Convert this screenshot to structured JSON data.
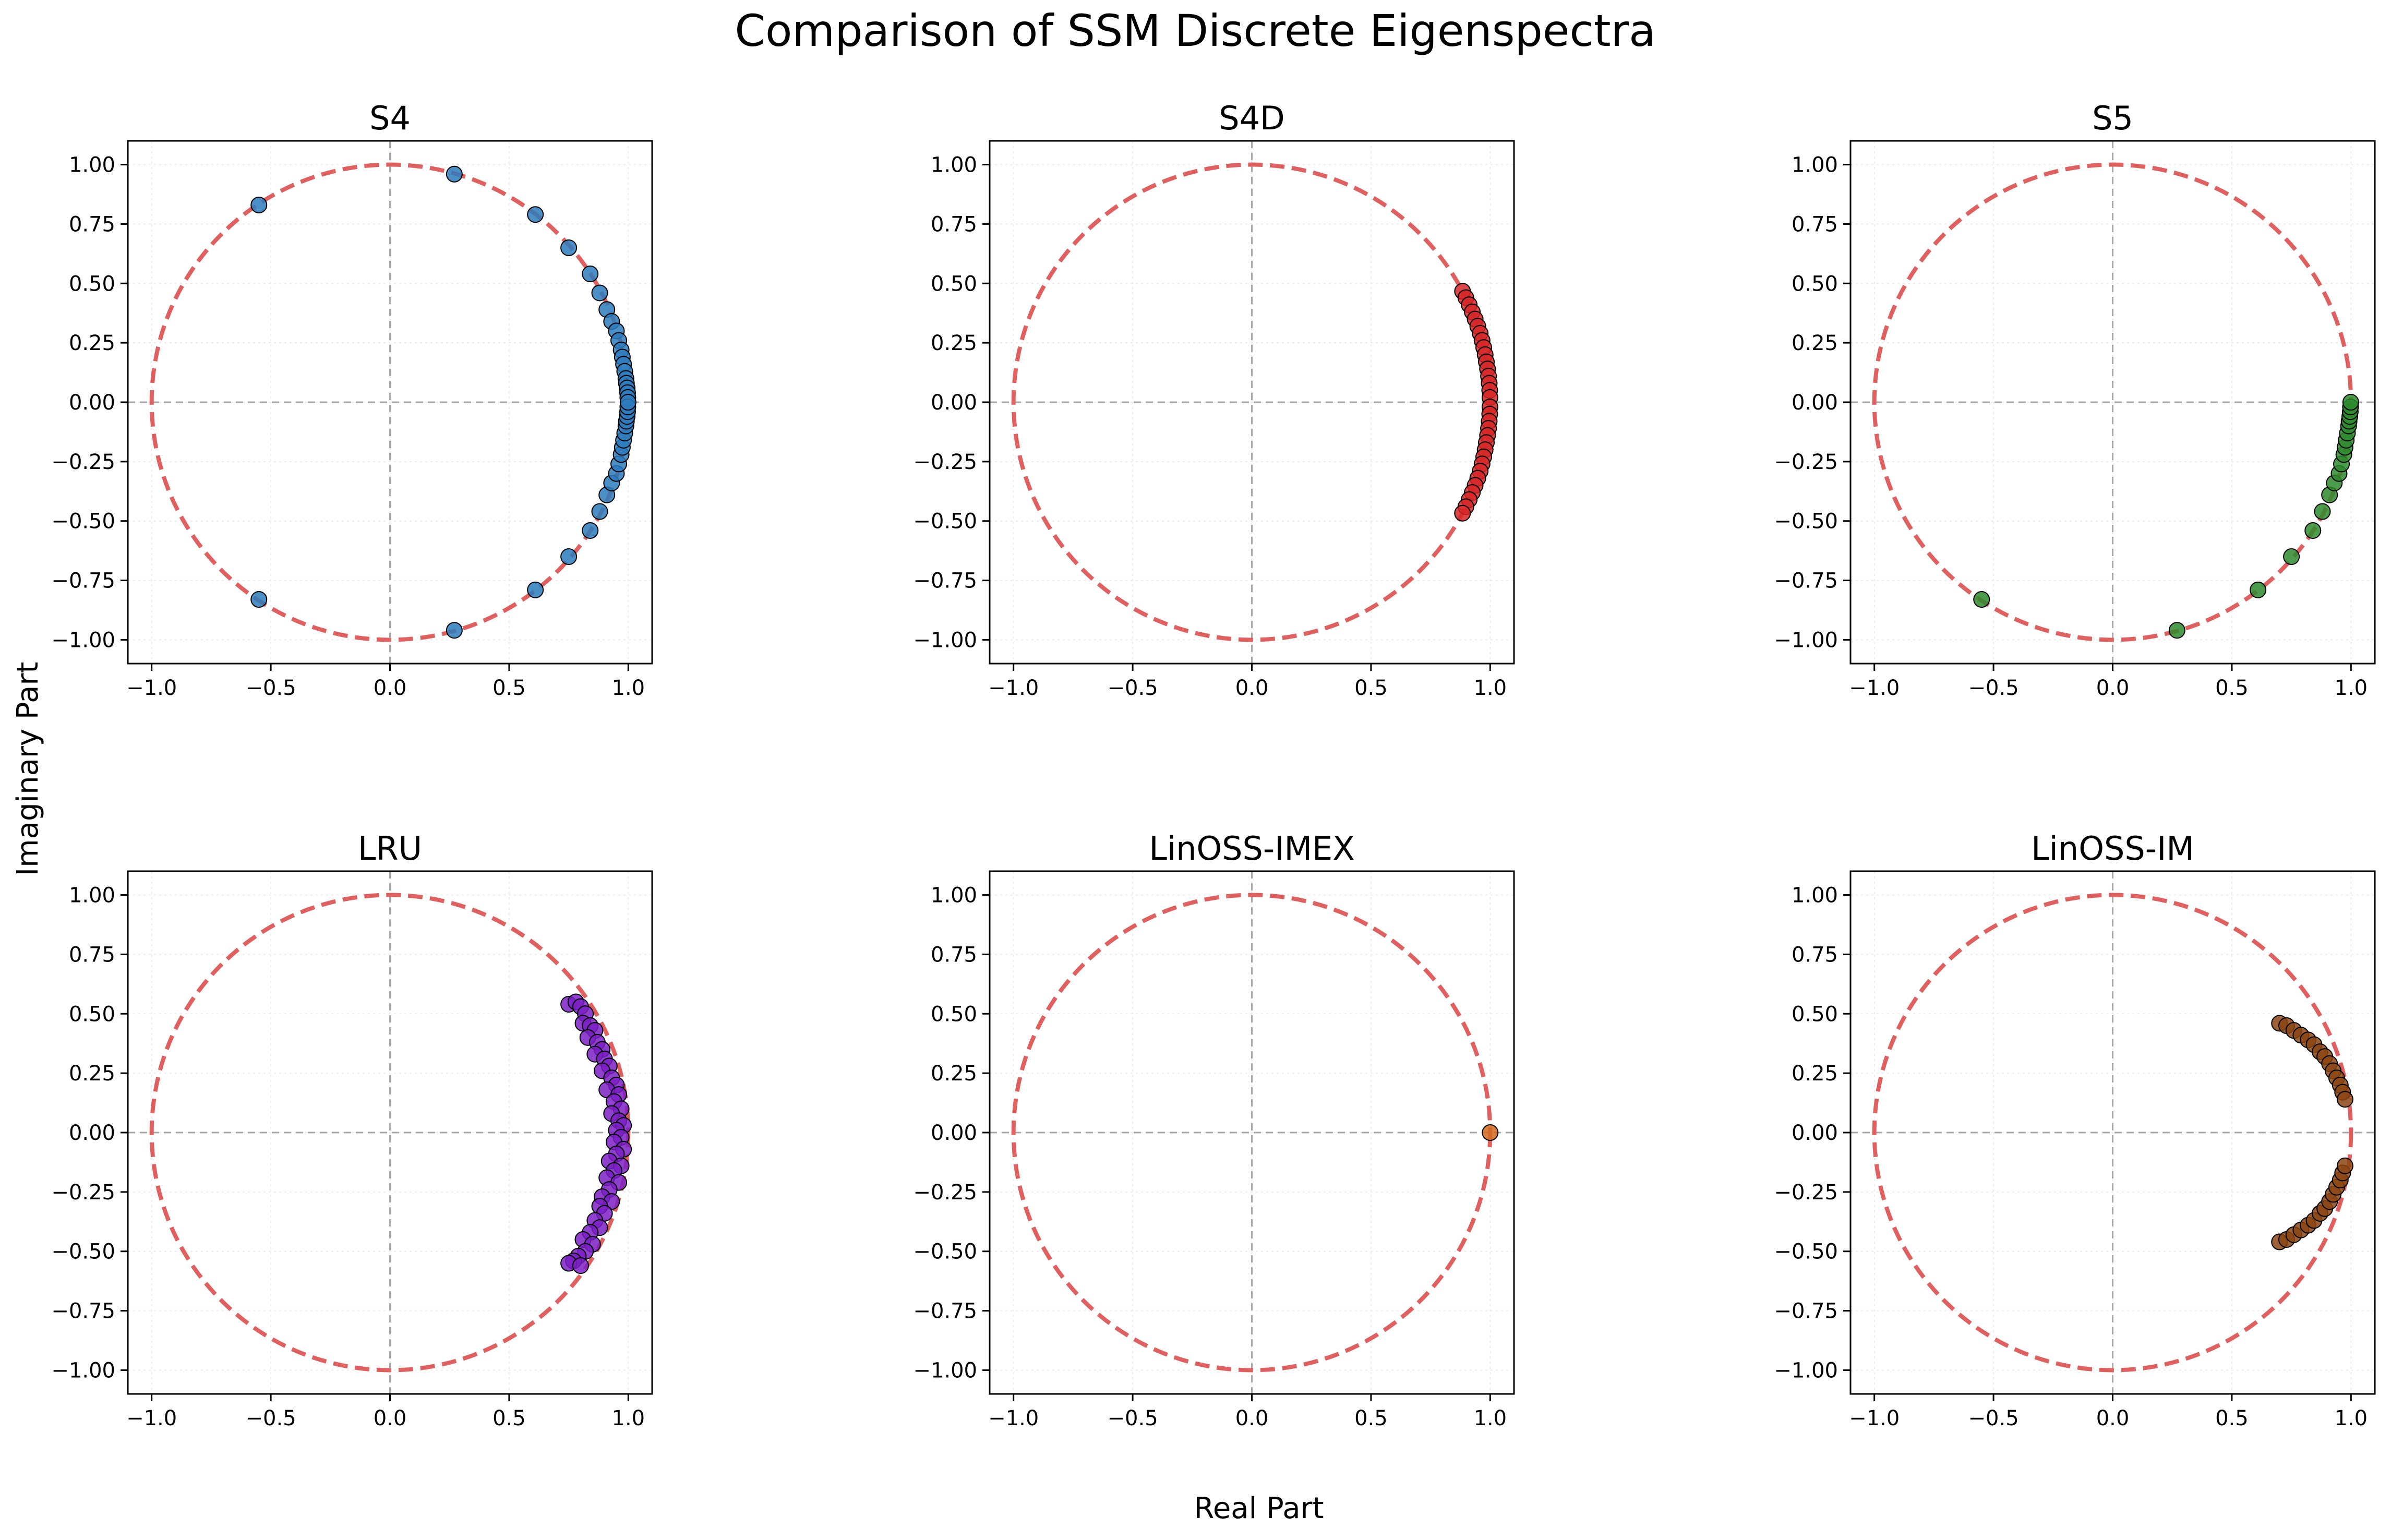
{
  "figure": {
    "title": "Comparison of SSM Discrete Eigenspectra",
    "xlabel": "Real Part",
    "ylabel": "Imaginary Part"
  },
  "style": {
    "unit_circle_color": "#e06060",
    "axis_line_color": "#a8a8a8",
    "marker_edge_color": "#000000"
  },
  "chart_data": [
    {
      "type": "scatter",
      "title": "S4",
      "color": "#2b7bbd",
      "xlim": [
        -1.1,
        1.1
      ],
      "ylim": [
        -1.1,
        1.1
      ],
      "xticks": [
        -1.0,
        -0.5,
        0.0,
        0.5,
        1.0
      ],
      "yticks": [
        -1.0,
        -0.75,
        -0.5,
        -0.25,
        0.0,
        0.25,
        0.5,
        0.75,
        1.0
      ],
      "grid": true,
      "unit_circle": true,
      "points": [
        [
          -0.55,
          0.83
        ],
        [
          -0.55,
          -0.83
        ],
        [
          0.27,
          0.96
        ],
        [
          0.27,
          -0.96
        ],
        [
          0.61,
          0.79
        ],
        [
          0.61,
          -0.79
        ],
        [
          0.75,
          0.65
        ],
        [
          0.75,
          -0.65
        ],
        [
          0.84,
          0.54
        ],
        [
          0.84,
          -0.54
        ],
        [
          0.88,
          0.46
        ],
        [
          0.88,
          -0.46
        ],
        [
          0.91,
          0.39
        ],
        [
          0.91,
          -0.39
        ],
        [
          0.93,
          0.34
        ],
        [
          0.93,
          -0.34
        ],
        [
          0.95,
          0.3
        ],
        [
          0.95,
          -0.3
        ],
        [
          0.96,
          0.26
        ],
        [
          0.96,
          -0.26
        ],
        [
          0.97,
          0.22
        ],
        [
          0.97,
          -0.22
        ],
        [
          0.975,
          0.19
        ],
        [
          0.975,
          -0.19
        ],
        [
          0.98,
          0.16
        ],
        [
          0.98,
          -0.16
        ],
        [
          0.985,
          0.13
        ],
        [
          0.985,
          -0.13
        ],
        [
          0.99,
          0.1
        ],
        [
          0.99,
          -0.1
        ],
        [
          0.992,
          0.08
        ],
        [
          0.992,
          -0.08
        ],
        [
          0.995,
          0.06
        ],
        [
          0.995,
          -0.06
        ],
        [
          0.997,
          0.04
        ],
        [
          0.997,
          -0.04
        ],
        [
          0.998,
          0.02
        ],
        [
          0.998,
          -0.02
        ],
        [
          0.999,
          0.0
        ]
      ]
    },
    {
      "type": "scatter",
      "title": "S4D",
      "color": "#d62728",
      "xlim": [
        -1.1,
        1.1
      ],
      "ylim": [
        -1.1,
        1.1
      ],
      "xticks": [
        -1.0,
        -0.5,
        0.0,
        0.5,
        1.0
      ],
      "yticks": [
        -1.0,
        -0.75,
        -0.5,
        -0.25,
        0.0,
        0.25,
        0.5,
        0.75,
        1.0
      ],
      "grid": true,
      "unit_circle": true,
      "points": [
        [
          0.884,
          0.467
        ],
        [
          0.898,
          0.44
        ],
        [
          0.912,
          0.41
        ],
        [
          0.925,
          0.38
        ],
        [
          0.937,
          0.35
        ],
        [
          0.948,
          0.32
        ],
        [
          0.958,
          0.29
        ],
        [
          0.966,
          0.26
        ],
        [
          0.973,
          0.23
        ],
        [
          0.979,
          0.2
        ],
        [
          0.984,
          0.17
        ],
        [
          0.989,
          0.14
        ],
        [
          0.993,
          0.11
        ],
        [
          0.996,
          0.08
        ],
        [
          0.998,
          0.05
        ],
        [
          0.999,
          0.02
        ],
        [
          0.999,
          -0.02
        ],
        [
          0.998,
          -0.05
        ],
        [
          0.996,
          -0.08
        ],
        [
          0.993,
          -0.11
        ],
        [
          0.989,
          -0.14
        ],
        [
          0.984,
          -0.17
        ],
        [
          0.979,
          -0.2
        ],
        [
          0.973,
          -0.23
        ],
        [
          0.966,
          -0.26
        ],
        [
          0.958,
          -0.29
        ],
        [
          0.948,
          -0.32
        ],
        [
          0.937,
          -0.35
        ],
        [
          0.925,
          -0.38
        ],
        [
          0.912,
          -0.41
        ],
        [
          0.898,
          -0.44
        ],
        [
          0.884,
          -0.467
        ]
      ]
    },
    {
      "type": "scatter",
      "title": "S5",
      "color": "#2e8b2e",
      "xlim": [
        -1.1,
        1.1
      ],
      "ylim": [
        -1.1,
        1.1
      ],
      "xticks": [
        -1.0,
        -0.5,
        0.0,
        0.5,
        1.0
      ],
      "yticks": [
        -1.0,
        -0.75,
        -0.5,
        -0.25,
        0.0,
        0.25,
        0.5,
        0.75,
        1.0
      ],
      "grid": true,
      "unit_circle": true,
      "points": [
        [
          -0.55,
          -0.83
        ],
        [
          0.27,
          -0.96
        ],
        [
          0.61,
          -0.79
        ],
        [
          0.75,
          -0.65
        ],
        [
          0.84,
          -0.54
        ],
        [
          0.88,
          -0.46
        ],
        [
          0.91,
          -0.39
        ],
        [
          0.93,
          -0.34
        ],
        [
          0.95,
          -0.3
        ],
        [
          0.96,
          -0.26
        ],
        [
          0.97,
          -0.22
        ],
        [
          0.975,
          -0.19
        ],
        [
          0.98,
          -0.16
        ],
        [
          0.985,
          -0.13
        ],
        [
          0.99,
          -0.1
        ],
        [
          0.992,
          -0.08
        ],
        [
          0.995,
          -0.06
        ],
        [
          0.997,
          -0.04
        ],
        [
          0.998,
          -0.02
        ],
        [
          0.999,
          0.0
        ]
      ]
    },
    {
      "type": "scatter",
      "title": "LRU",
      "color": "#7b1fc4",
      "xlim": [
        -1.1,
        1.1
      ],
      "ylim": [
        -1.1,
        1.1
      ],
      "xticks": [
        -1.0,
        -0.5,
        0.0,
        0.5,
        1.0
      ],
      "yticks": [
        -1.0,
        -0.75,
        -0.5,
        -0.25,
        0.0,
        0.25,
        0.5,
        0.75,
        1.0
      ],
      "grid": true,
      "unit_circle": true,
      "points": [
        [
          0.75,
          0.54
        ],
        [
          0.78,
          0.55
        ],
        [
          0.8,
          0.53
        ],
        [
          0.82,
          0.5
        ],
        [
          0.81,
          0.46
        ],
        [
          0.84,
          0.45
        ],
        [
          0.86,
          0.43
        ],
        [
          0.83,
          0.4
        ],
        [
          0.87,
          0.38
        ],
        [
          0.89,
          0.35
        ],
        [
          0.86,
          0.33
        ],
        [
          0.9,
          0.31
        ],
        [
          0.92,
          0.28
        ],
        [
          0.89,
          0.26
        ],
        [
          0.93,
          0.23
        ],
        [
          0.95,
          0.2
        ],
        [
          0.91,
          0.18
        ],
        [
          0.96,
          0.16
        ],
        [
          0.94,
          0.13
        ],
        [
          0.97,
          0.1
        ],
        [
          0.93,
          0.08
        ],
        [
          0.96,
          0.05
        ],
        [
          0.98,
          0.03
        ],
        [
          0.95,
          0.01
        ],
        [
          0.97,
          -0.02
        ],
        [
          0.94,
          -0.04
        ],
        [
          0.98,
          -0.07
        ],
        [
          0.95,
          -0.09
        ],
        [
          0.92,
          -0.12
        ],
        [
          0.97,
          -0.14
        ],
        [
          0.94,
          -0.16
        ],
        [
          0.91,
          -0.19
        ],
        [
          0.96,
          -0.21
        ],
        [
          0.92,
          -0.24
        ],
        [
          0.89,
          -0.27
        ],
        [
          0.93,
          -0.29
        ],
        [
          0.88,
          -0.31
        ],
        [
          0.9,
          -0.34
        ],
        [
          0.86,
          -0.37
        ],
        [
          0.88,
          -0.4
        ],
        [
          0.84,
          -0.42
        ],
        [
          0.81,
          -0.45
        ],
        [
          0.85,
          -0.47
        ],
        [
          0.82,
          -0.5
        ],
        [
          0.79,
          -0.52
        ],
        [
          0.77,
          -0.54
        ],
        [
          0.75,
          -0.55
        ],
        [
          0.8,
          -0.56
        ]
      ]
    },
    {
      "type": "scatter",
      "title": "LinOSS-IMEX",
      "color": "#d2691e",
      "xlim": [
        -1.1,
        1.1
      ],
      "ylim": [
        -1.1,
        1.1
      ],
      "xticks": [
        -1.0,
        -0.5,
        0.0,
        0.5,
        1.0
      ],
      "yticks": [
        -1.0,
        -0.75,
        -0.5,
        -0.25,
        0.0,
        0.25,
        0.5,
        0.75,
        1.0
      ],
      "grid": true,
      "unit_circle": true,
      "points": [
        [
          1.0,
          0.0
        ]
      ]
    },
    {
      "type": "scatter",
      "title": "LinOSS-IM",
      "color": "#8b4513",
      "xlim": [
        -1.1,
        1.1
      ],
      "ylim": [
        -1.1,
        1.1
      ],
      "xticks": [
        -1.0,
        -0.5,
        0.0,
        0.5,
        1.0
      ],
      "yticks": [
        -1.0,
        -0.75,
        -0.5,
        -0.25,
        0.0,
        0.25,
        0.5,
        0.75,
        1.0
      ],
      "grid": true,
      "unit_circle": true,
      "points": [
        [
          0.7,
          0.46
        ],
        [
          0.73,
          0.45
        ],
        [
          0.76,
          0.43
        ],
        [
          0.79,
          0.41
        ],
        [
          0.82,
          0.39
        ],
        [
          0.845,
          0.37
        ],
        [
          0.87,
          0.34
        ],
        [
          0.89,
          0.32
        ],
        [
          0.91,
          0.29
        ],
        [
          0.925,
          0.26
        ],
        [
          0.94,
          0.23
        ],
        [
          0.955,
          0.2
        ],
        [
          0.965,
          0.17
        ],
        [
          0.975,
          0.14
        ],
        [
          0.7,
          -0.46
        ],
        [
          0.73,
          -0.45
        ],
        [
          0.76,
          -0.43
        ],
        [
          0.79,
          -0.41
        ],
        [
          0.82,
          -0.39
        ],
        [
          0.845,
          -0.37
        ],
        [
          0.87,
          -0.34
        ],
        [
          0.89,
          -0.32
        ],
        [
          0.91,
          -0.29
        ],
        [
          0.925,
          -0.26
        ],
        [
          0.94,
          -0.23
        ],
        [
          0.955,
          -0.2
        ],
        [
          0.965,
          -0.17
        ],
        [
          0.975,
          -0.14
        ]
      ]
    }
  ]
}
